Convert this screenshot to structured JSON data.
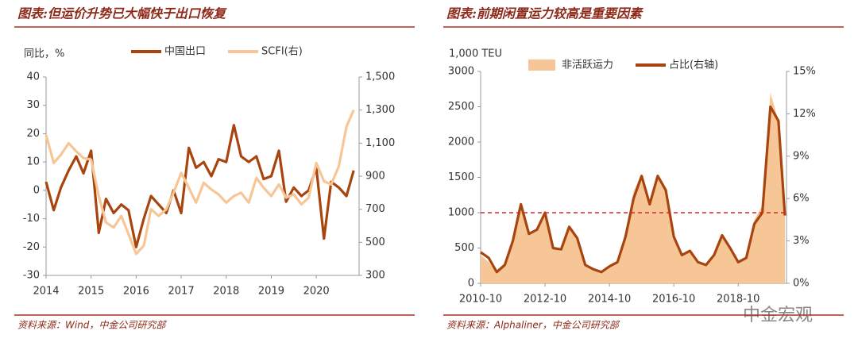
{
  "chart_data": [
    {
      "type": "line",
      "title": "图表:但运价升势已大幅快于出口恢复",
      "y_label": "同比，%",
      "x": [
        2014.0,
        2014.17,
        2014.33,
        2014.5,
        2014.67,
        2014.83,
        2015.0,
        2015.17,
        2015.33,
        2015.5,
        2015.67,
        2015.83,
        2016.0,
        2016.17,
        2016.33,
        2016.5,
        2016.67,
        2016.83,
        2017.0,
        2017.17,
        2017.33,
        2017.5,
        2017.67,
        2017.83,
        2018.0,
        2018.17,
        2018.33,
        2018.5,
        2018.67,
        2018.83,
        2019.0,
        2019.17,
        2019.33,
        2019.5,
        2019.67,
        2019.83,
        2020.0,
        2020.17,
        2020.33,
        2020.5,
        2020.67,
        2020.83
      ],
      "series": [
        {
          "name": "中国出口",
          "color": "#a8450f",
          "kind": "line",
          "values": [
            3,
            -7,
            1,
            7,
            12,
            6,
            14,
            -15,
            -3,
            -8,
            -5,
            -7,
            -20,
            -10,
            -2,
            -5,
            -8,
            0,
            -8,
            15,
            8,
            10,
            5,
            11,
            10,
            23,
            12,
            10,
            12,
            4,
            5,
            14,
            -4,
            1,
            -2,
            0,
            8,
            -17,
            3,
            1,
            -2,
            7
          ]
        },
        {
          "name": "SCFI(右)",
          "color": "#f7c696",
          "kind": "line",
          "axis": "y2",
          "values": [
            1150,
            980,
            1030,
            1100,
            1050,
            1010,
            1000,
            780,
            620,
            590,
            660,
            550,
            430,
            480,
            700,
            660,
            700,
            800,
            920,
            830,
            740,
            860,
            820,
            790,
            740,
            780,
            800,
            740,
            890,
            830,
            780,
            850,
            770,
            790,
            730,
            770,
            980,
            870,
            850,
            960,
            1200,
            1300
          ]
        }
      ],
      "xlim": [
        2014,
        2020.95
      ],
      "xticks": [
        2014,
        2015,
        2016,
        2017,
        2018,
        2019,
        2020
      ],
      "ylim": [
        -30,
        40
      ],
      "yticks": [
        -30,
        -20,
        -10,
        0,
        10,
        20,
        30,
        40
      ],
      "y2lim": [
        300,
        1500
      ],
      "y2ticks": [
        300,
        500,
        700,
        900,
        {
          "value": 1100,
          "label": "1,100"
        },
        {
          "value": 1300,
          "label": "1,300"
        },
        {
          "value": 1500,
          "label": "1,500"
        }
      ],
      "source": "资料来源：Wind，中金公司研究部"
    },
    {
      "type": "area",
      "title": "图表:前期闲置运力较高是重要因素",
      "y_label": "1,000 TEU",
      "x": [
        2010.75,
        2011.0,
        2011.25,
        2011.5,
        2011.75,
        2012.0,
        2012.25,
        2012.5,
        2012.75,
        2013.0,
        2013.25,
        2013.5,
        2013.75,
        2014.0,
        2014.25,
        2014.5,
        2014.75,
        2015.0,
        2015.25,
        2015.5,
        2015.75,
        2016.0,
        2016.25,
        2016.5,
        2016.75,
        2017.0,
        2017.25,
        2017.5,
        2017.75,
        2018.0,
        2018.25,
        2018.5,
        2018.75,
        2019.0,
        2019.25,
        2019.5,
        2019.75,
        2020.0,
        2020.2
      ],
      "series": [
        {
          "name": "非活跃运力",
          "color": "#f7c696",
          "kind": "area",
          "values": [
            400,
            300,
            150,
            250,
            600,
            1100,
            700,
            750,
            1000,
            500,
            450,
            800,
            600,
            250,
            200,
            150,
            250,
            300,
            700,
            1300,
            1550,
            1150,
            1500,
            1300,
            700,
            400,
            450,
            300,
            250,
            400,
            700,
            500,
            300,
            350,
            900,
            1100,
            2700,
            2300,
            1000
          ]
        },
        {
          "name": "占比(右轴)",
          "color": "#a8450f",
          "kind": "line",
          "axis": "y2",
          "values": [
            2.2,
            1.8,
            0.8,
            1.3,
            3.0,
            5.6,
            3.5,
            3.8,
            5.0,
            2.5,
            2.4,
            4.0,
            3.2,
            1.3,
            1.0,
            0.8,
            1.2,
            1.5,
            3.3,
            6.0,
            7.6,
            5.6,
            7.6,
            6.6,
            3.3,
            2.0,
            2.3,
            1.5,
            1.3,
            2.0,
            3.4,
            2.5,
            1.5,
            1.8,
            4.2,
            5.0,
            12.5,
            11.5,
            4.8
          ]
        }
      ],
      "reference_line": {
        "value": 1000,
        "color": "#d9262b"
      },
      "xlim": [
        2010.75,
        2020.25
      ],
      "xticks": [
        {
          "value": 2010.75,
          "label": "2010-10"
        },
        {
          "value": 2012.75,
          "label": "2012-10"
        },
        {
          "value": 2014.75,
          "label": "2014-10"
        },
        {
          "value": 2016.75,
          "label": "2016-10"
        },
        {
          "value": 2018.75,
          "label": "2018-10"
        }
      ],
      "ylim": [
        0,
        3000
      ],
      "yticks": [
        0,
        500,
        1000,
        1500,
        2000,
        2500,
        3000
      ],
      "y2lim": [
        0,
        15
      ],
      "y2ticks": [
        {
          "value": 0,
          "label": "0%"
        },
        {
          "value": 3,
          "label": "3%"
        },
        {
          "value": 6,
          "label": "6%"
        },
        {
          "value": 9,
          "label": "9%"
        },
        {
          "value": 12,
          "label": "12%"
        },
        {
          "value": 15,
          "label": "15%"
        }
      ],
      "source": "资料来源：Alphaliner，中金公司研究部"
    }
  ],
  "watermark": "中金宏观"
}
